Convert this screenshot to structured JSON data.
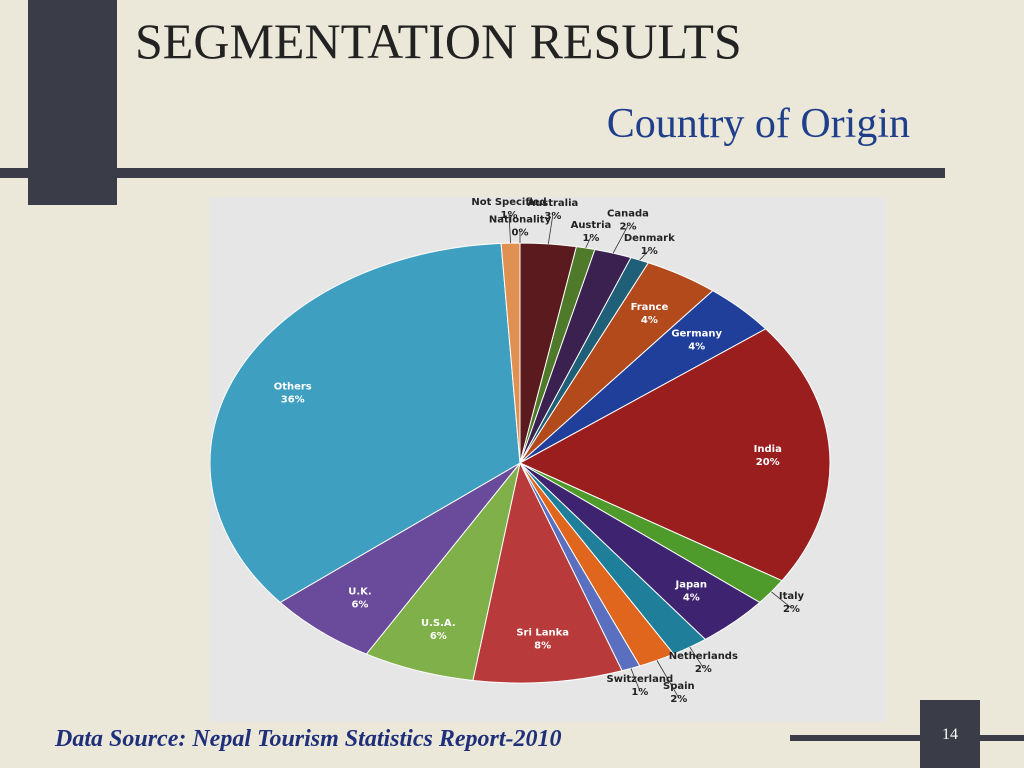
{
  "slide": {
    "title": "SEGMENTATION RESULTS",
    "subtitle": "Country of Origin",
    "footer": "Data Source: Nepal Tourism Statistics Report-2010",
    "page_number": "14"
  },
  "chart_data": {
    "type": "pie",
    "categories": [
      "Nationality",
      "Australia",
      "Austria",
      "Canada",
      "Denmark",
      "France",
      "Germany",
      "India",
      "Italy",
      "Japan",
      "Netherlands",
      "Spain",
      "Switzerland",
      "Sri Lanka",
      "U.S.A.",
      "U.K.",
      "Others",
      "Not Specified"
    ],
    "values": [
      0,
      3,
      1,
      2,
      1,
      4,
      4,
      20,
      2,
      4,
      2,
      2,
      1,
      8,
      6,
      6,
      36,
      1
    ],
    "value_labels": [
      "0%",
      "3%",
      "1%",
      "2%",
      "1%",
      "4%",
      "4%",
      "20%",
      "2%",
      "4%",
      "2%",
      "2%",
      "1%",
      "8%",
      "6%",
      "6%",
      "36%",
      "1%"
    ],
    "colors": [
      "#1f2f6a",
      "#5a1a1e",
      "#4f7a2a",
      "#3a2150",
      "#1f5f78",
      "#b24a1c",
      "#1f3f9a",
      "#9a1e1e",
      "#4e9a2a",
      "#3e2470",
      "#1f7f9a",
      "#e0661e",
      "#5a6fc0",
      "#b83a3a",
      "#7fb04a",
      "#6a4a9a",
      "#3f9fc0",
      "#e09050"
    ]
  }
}
